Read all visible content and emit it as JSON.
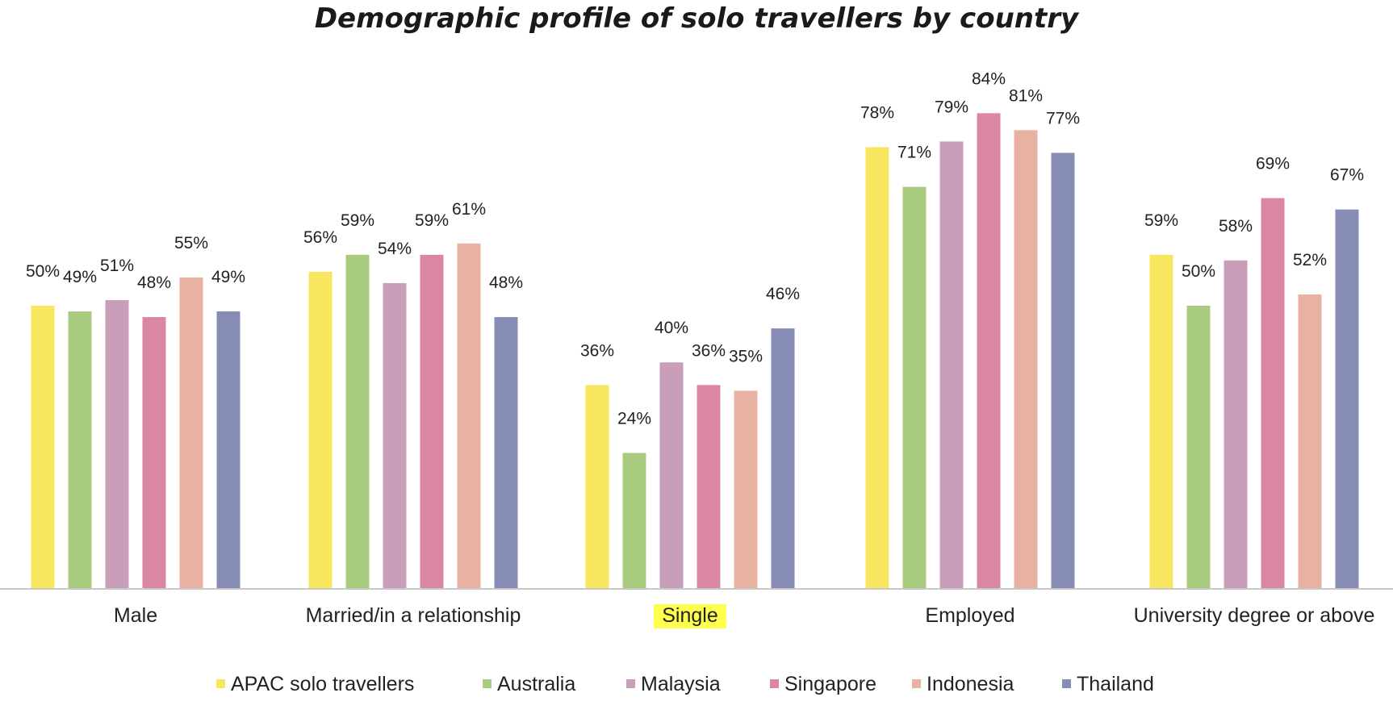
{
  "chart_data": {
    "type": "bar",
    "title": "Demographic profile of solo travellers by country",
    "categories": [
      "Male",
      "Married/in a relationship",
      "Single",
      "Employed",
      "University degree or above"
    ],
    "highlighted_category": "Single",
    "highlight_color": "#ffff4d",
    "ylim": [
      0,
      100
    ],
    "grid": false,
    "legend_position": "bottom",
    "value_format": "percent",
    "series": [
      {
        "name": "APAC solo travellers",
        "color": "#f7e65e",
        "values": [
          50,
          56,
          36,
          78,
          59
        ]
      },
      {
        "name": "Australia",
        "color": "#a9cb80",
        "values": [
          49,
          59,
          24,
          71,
          50
        ]
      },
      {
        "name": "Malaysia",
        "color": "#c89eba",
        "values": [
          51,
          54,
          40,
          79,
          58
        ]
      },
      {
        "name": "Singapore",
        "color": "#db87a3",
        "values": [
          48,
          59,
          36,
          84,
          69
        ]
      },
      {
        "name": "Indonesia",
        "color": "#e8b2a3",
        "values": [
          55,
          61,
          35,
          81,
          52
        ]
      },
      {
        "name": "Thailand",
        "color": "#878cb5",
        "values": [
          49,
          48,
          46,
          77,
          67
        ]
      }
    ]
  }
}
